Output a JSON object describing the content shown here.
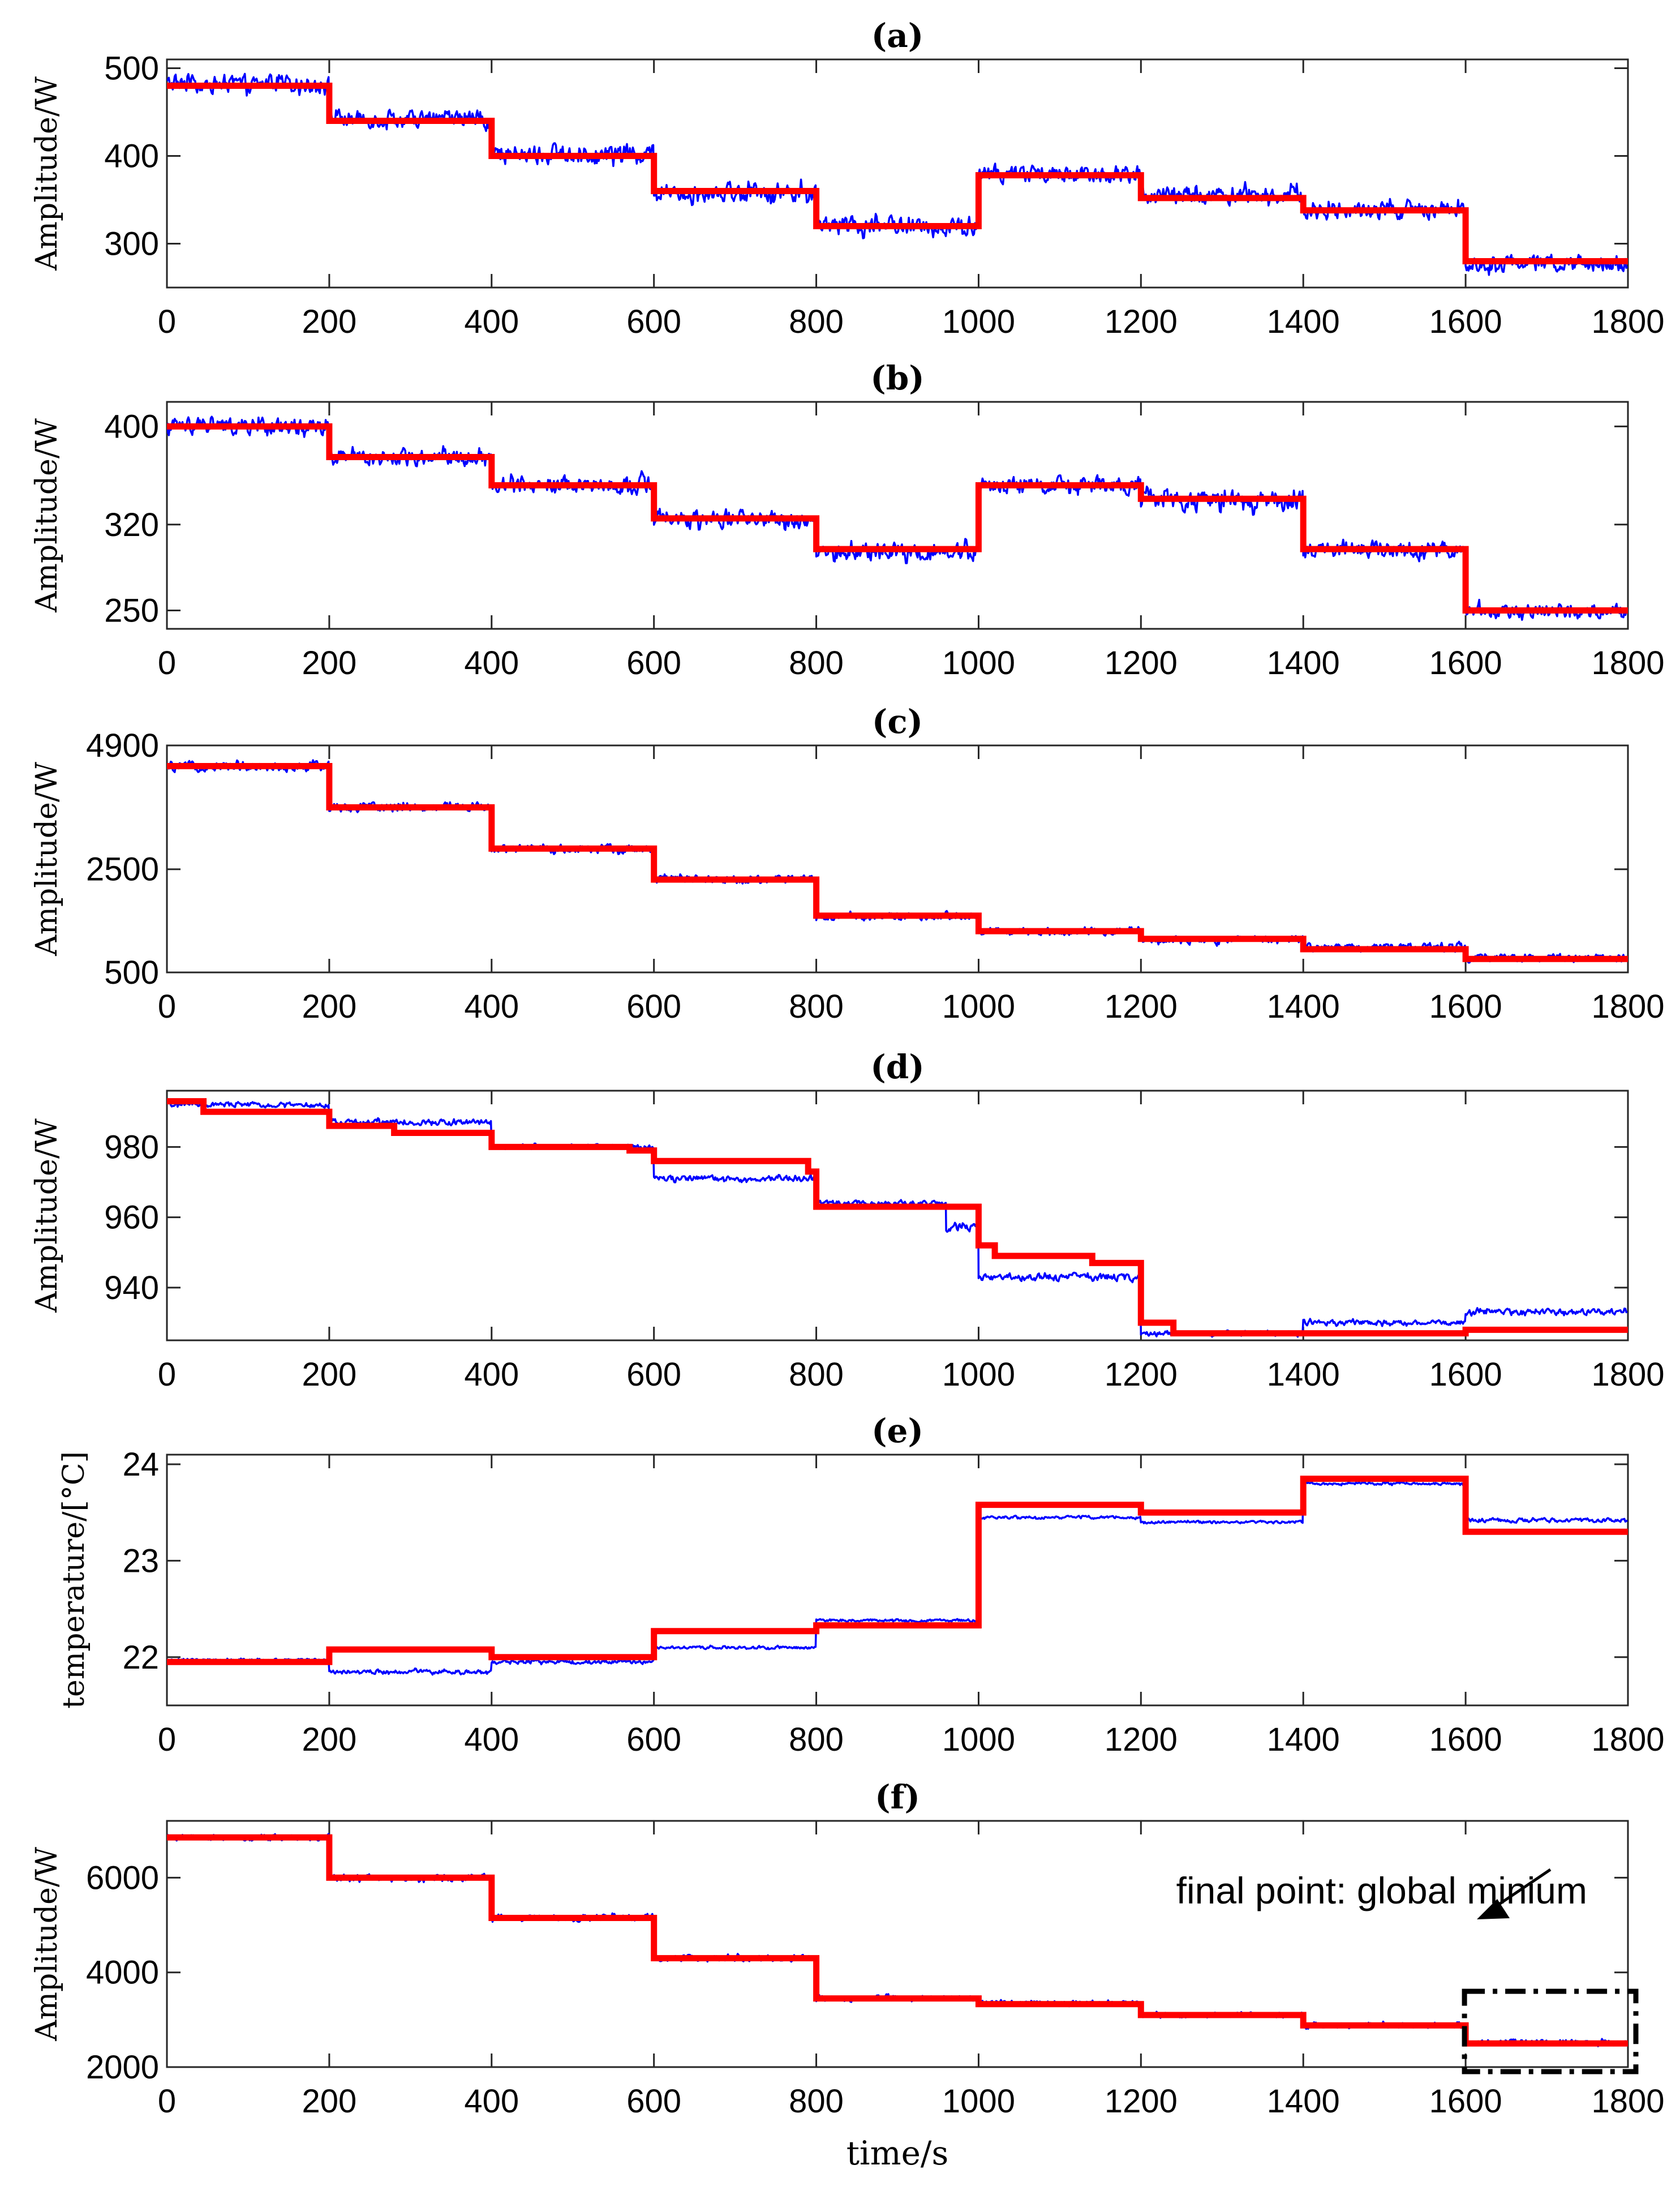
{
  "chart_data": [
    {
      "type": "line",
      "title": "(a)",
      "xlabel": "",
      "ylabel": "Amplitude/W",
      "xlim": [
        0,
        1800
      ],
      "ylim": [
        250,
        510
      ],
      "xticks": [
        0,
        200,
        400,
        600,
        800,
        1000,
        1200,
        1400,
        1600,
        1800
      ],
      "yticks": [
        300,
        400,
        500
      ],
      "series": [
        {
          "name": "measured",
          "color": "#0000ff",
          "steps": [
            {
              "x0": 0,
              "x1": 200,
              "level": 482,
              "noise": 14
            },
            {
              "x0": 200,
              "x1": 400,
              "level": 442,
              "noise": 14
            },
            {
              "x0": 400,
              "x1": 600,
              "level": 402,
              "noise": 16
            },
            {
              "x0": 600,
              "x1": 800,
              "level": 360,
              "noise": 16
            },
            {
              "x0": 800,
              "x1": 1000,
              "level": 320,
              "noise": 15
            },
            {
              "x0": 1000,
              "x1": 1200,
              "level": 380,
              "noise": 15
            },
            {
              "x0": 1200,
              "x1": 1400,
              "level": 355,
              "noise": 14
            },
            {
              "x0": 1400,
              "x1": 1600,
              "level": 338,
              "noise": 15
            },
            {
              "x0": 1600,
              "x1": 1800,
              "level": 277,
              "noise": 13
            }
          ]
        },
        {
          "name": "estimated",
          "color": "#ff0000",
          "points": [
            [
              0,
              480
            ],
            [
              200,
              480
            ],
            [
              200,
              440
            ],
            [
              400,
              440
            ],
            [
              400,
              400
            ],
            [
              600,
              400
            ],
            [
              600,
              360
            ],
            [
              800,
              360
            ],
            [
              800,
              320
            ],
            [
              1000,
              320
            ],
            [
              1000,
              378
            ],
            [
              1200,
              378
            ],
            [
              1200,
              352
            ],
            [
              1400,
              352
            ],
            [
              1400,
              338
            ],
            [
              1600,
              338
            ],
            [
              1600,
              280
            ],
            [
              1800,
              280
            ]
          ]
        }
      ]
    },
    {
      "type": "line",
      "title": "(b)",
      "xlabel": "",
      "ylabel": "Amplitude/W",
      "xlim": [
        0,
        1800
      ],
      "ylim": [
        235,
        420
      ],
      "xticks": [
        0,
        200,
        400,
        600,
        800,
        1000,
        1200,
        1400,
        1600,
        1800
      ],
      "yticks": [
        250,
        320,
        400
      ],
      "series": [
        {
          "name": "measured",
          "color": "#0000ff",
          "steps": [
            {
              "x0": 0,
              "x1": 200,
              "level": 400,
              "noise": 10
            },
            {
              "x0": 200,
              "x1": 400,
              "level": 375,
              "noise": 10
            },
            {
              "x0": 400,
              "x1": 600,
              "level": 352,
              "noise": 10
            },
            {
              "x0": 600,
              "x1": 800,
              "level": 324,
              "noise": 10
            },
            {
              "x0": 800,
              "x1": 1000,
              "level": 298,
              "noise": 10
            },
            {
              "x0": 1000,
              "x1": 1200,
              "level": 352,
              "noise": 10
            },
            {
              "x0": 1200,
              "x1": 1400,
              "level": 340,
              "noise": 12
            },
            {
              "x0": 1400,
              "x1": 1600,
              "level": 300,
              "noise": 10
            },
            {
              "x0": 1600,
              "x1": 1800,
              "level": 250,
              "noise": 8
            }
          ]
        },
        {
          "name": "estimated",
          "color": "#ff0000",
          "points": [
            [
              0,
              400
            ],
            [
              200,
              400
            ],
            [
              200,
              375
            ],
            [
              400,
              375
            ],
            [
              400,
              352
            ],
            [
              600,
              352
            ],
            [
              600,
              325
            ],
            [
              800,
              325
            ],
            [
              800,
              300
            ],
            [
              1000,
              300
            ],
            [
              1000,
              352
            ],
            [
              1200,
              352
            ],
            [
              1200,
              341
            ],
            [
              1400,
              341
            ],
            [
              1400,
              300
            ],
            [
              1600,
              300
            ],
            [
              1600,
              250
            ],
            [
              1800,
              250
            ]
          ]
        }
      ]
    },
    {
      "type": "line",
      "title": "(c)",
      "xlabel": "",
      "ylabel": "Amplitude/W",
      "xlim": [
        0,
        1800
      ],
      "ylim": [
        500,
        4900
      ],
      "xticks": [
        0,
        200,
        400,
        600,
        800,
        1000,
        1200,
        1400,
        1600,
        1800
      ],
      "yticks": [
        500,
        2500,
        4900
      ],
      "series": [
        {
          "name": "measured",
          "color": "#0000ff",
          "steps": [
            {
              "x0": 0,
              "x1": 200,
              "level": 4500,
              "noise": 140
            },
            {
              "x0": 200,
              "x1": 400,
              "level": 3700,
              "noise": 130
            },
            {
              "x0": 400,
              "x1": 600,
              "level": 2900,
              "noise": 120
            },
            {
              "x0": 600,
              "x1": 800,
              "level": 2300,
              "noise": 110
            },
            {
              "x0": 800,
              "x1": 1000,
              "level": 1580,
              "noise": 100
            },
            {
              "x0": 1000,
              "x1": 1200,
              "level": 1300,
              "noise": 100
            },
            {
              "x0": 1200,
              "x1": 1400,
              "level": 1130,
              "noise": 100
            },
            {
              "x0": 1400,
              "x1": 1600,
              "level": 990,
              "noise": 100
            },
            {
              "x0": 1600,
              "x1": 1800,
              "level": 780,
              "noise": 100
            }
          ]
        },
        {
          "name": "estimated",
          "color": "#ff0000",
          "points": [
            [
              0,
              4500
            ],
            [
              200,
              4500
            ],
            [
              200,
              3700
            ],
            [
              400,
              3700
            ],
            [
              400,
              2900
            ],
            [
              600,
              2900
            ],
            [
              600,
              2300
            ],
            [
              800,
              2300
            ],
            [
              800,
              1600
            ],
            [
              1000,
              1600
            ],
            [
              1000,
              1300
            ],
            [
              1200,
              1300
            ],
            [
              1200,
              1150
            ],
            [
              1400,
              1150
            ],
            [
              1400,
              950
            ],
            [
              1600,
              950
            ],
            [
              1600,
              760
            ],
            [
              1800,
              760
            ]
          ]
        }
      ]
    },
    {
      "type": "line",
      "title": "(d)",
      "xlabel": "",
      "ylabel": "Amplitude/W",
      "xlim": [
        0,
        1800
      ],
      "ylim": [
        925,
        996
      ],
      "xticks": [
        0,
        200,
        400,
        600,
        800,
        1000,
        1200,
        1400,
        1600,
        1800
      ],
      "yticks": [
        940,
        960,
        980
      ],
      "series": [
        {
          "name": "measured",
          "color": "#0000ff",
          "steps": [
            {
              "x0": 0,
              "x1": 200,
              "level": 992,
              "noise": 1
            },
            {
              "x0": 200,
              "x1": 400,
              "level": 987,
              "noise": 1.2
            },
            {
              "x0": 400,
              "x1": 600,
              "level": 980,
              "noise": 1
            },
            {
              "x0": 600,
              "x1": 800,
              "level": 971,
              "noise": 1.2
            },
            {
              "x0": 800,
              "x1": 960,
              "level": 964,
              "noise": 1
            },
            {
              "x0": 960,
              "x1": 1000,
              "level": 957,
              "noise": 1.5
            },
            {
              "x0": 1000,
              "x1": 1200,
              "level": 943,
              "noise": 1.5
            },
            {
              "x0": 1200,
              "x1": 1400,
              "level": 927,
              "noise": 1
            },
            {
              "x0": 1400,
              "x1": 1600,
              "level": 930,
              "noise": 1
            },
            {
              "x0": 1600,
              "x1": 1800,
              "level": 933,
              "noise": 1.2
            }
          ]
        },
        {
          "name": "estimated",
          "color": "#ff0000",
          "points": [
            [
              0,
              993
            ],
            [
              45,
              993
            ],
            [
              45,
              990
            ],
            [
              200,
              990
            ],
            [
              200,
              986
            ],
            [
              280,
              986
            ],
            [
              280,
              984
            ],
            [
              400,
              984
            ],
            [
              400,
              980
            ],
            [
              570,
              980
            ],
            [
              570,
              979
            ],
            [
              600,
              979
            ],
            [
              600,
              976
            ],
            [
              790,
              976
            ],
            [
              790,
              973
            ],
            [
              800,
              973
            ],
            [
              800,
              963
            ],
            [
              1000,
              963
            ],
            [
              1000,
              952
            ],
            [
              1020,
              952
            ],
            [
              1020,
              949
            ],
            [
              1140,
              949
            ],
            [
              1140,
              947
            ],
            [
              1200,
              947
            ],
            [
              1200,
              930
            ],
            [
              1240,
              930
            ],
            [
              1240,
              927
            ],
            [
              1600,
              927
            ],
            [
              1600,
              928
            ],
            [
              1800,
              928
            ]
          ]
        }
      ]
    },
    {
      "type": "line",
      "title": "(e)",
      "xlabel": "",
      "ylabel": "temperature/[°C]",
      "xlim": [
        0,
        1800
      ],
      "ylim": [
        21.5,
        24.1
      ],
      "xticks": [
        0,
        200,
        400,
        600,
        800,
        1000,
        1200,
        1400,
        1600,
        1800
      ],
      "yticks": [
        22,
        23,
        24
      ],
      "series": [
        {
          "name": "measured",
          "color": "#0000ff",
          "steps": [
            {
              "x0": 0,
              "x1": 200,
              "level": 21.97,
              "noise": 0.02
            },
            {
              "x0": 200,
              "x1": 400,
              "level": 21.85,
              "noise": 0.03
            },
            {
              "x0": 400,
              "x1": 600,
              "level": 21.95,
              "noise": 0.03
            },
            {
              "x0": 600,
              "x1": 800,
              "level": 22.1,
              "noise": 0.02
            },
            {
              "x0": 800,
              "x1": 1000,
              "level": 22.38,
              "noise": 0.02
            },
            {
              "x0": 1000,
              "x1": 1200,
              "level": 23.45,
              "noise": 0.02
            },
            {
              "x0": 1200,
              "x1": 1400,
              "level": 23.4,
              "noise": 0.02
            },
            {
              "x0": 1400,
              "x1": 1600,
              "level": 23.8,
              "noise": 0.02
            },
            {
              "x0": 1600,
              "x1": 1800,
              "level": 23.42,
              "noise": 0.03
            }
          ]
        },
        {
          "name": "estimated",
          "color": "#ff0000",
          "points": [
            [
              0,
              21.95
            ],
            [
              200,
              21.95
            ],
            [
              200,
              22.08
            ],
            [
              400,
              22.08
            ],
            [
              400,
              22.0
            ],
            [
              600,
              22.0
            ],
            [
              600,
              22.27
            ],
            [
              800,
              22.27
            ],
            [
              800,
              22.33
            ],
            [
              1000,
              22.33
            ],
            [
              1000,
              23.58
            ],
            [
              1200,
              23.58
            ],
            [
              1200,
              23.5
            ],
            [
              1400,
              23.5
            ],
            [
              1400,
              23.85
            ],
            [
              1600,
              23.85
            ],
            [
              1600,
              23.3
            ],
            [
              1800,
              23.3
            ]
          ]
        }
      ]
    },
    {
      "type": "line",
      "title": "(f)",
      "xlabel": "time/s",
      "ylabel": "Amplitude/W",
      "xlim": [
        0,
        1800
      ],
      "ylim": [
        2000,
        7200
      ],
      "xticks": [
        0,
        200,
        400,
        600,
        800,
        1000,
        1200,
        1400,
        1600,
        1800
      ],
      "yticks": [
        2000,
        4000,
        6000
      ],
      "annotation": {
        "text": "final point: global minium",
        "box_x": [
          1600,
          1800
        ],
        "box_y": [
          2000,
          3600
        ]
      },
      "series": [
        {
          "name": "measured",
          "color": "#0000ff",
          "steps": [
            {
              "x0": 0,
              "x1": 200,
              "level": 6850,
              "noise": 90
            },
            {
              "x0": 200,
              "x1": 400,
              "level": 6000,
              "noise": 100
            },
            {
              "x0": 400,
              "x1": 600,
              "level": 5150,
              "noise": 100
            },
            {
              "x0": 600,
              "x1": 800,
              "level": 4300,
              "noise": 90
            },
            {
              "x0": 800,
              "x1": 1000,
              "level": 3450,
              "noise": 80
            },
            {
              "x0": 1000,
              "x1": 1200,
              "level": 3350,
              "noise": 80
            },
            {
              "x0": 1200,
              "x1": 1400,
              "level": 3100,
              "noise": 80
            },
            {
              "x0": 1400,
              "x1": 1600,
              "level": 2880,
              "noise": 80
            },
            {
              "x0": 1600,
              "x1": 1800,
              "level": 2520,
              "noise": 80
            }
          ]
        },
        {
          "name": "estimated",
          "color": "#ff0000",
          "points": [
            [
              0,
              6850
            ],
            [
              200,
              6850
            ],
            [
              200,
              6000
            ],
            [
              400,
              6000
            ],
            [
              400,
              5150
            ],
            [
              600,
              5150
            ],
            [
              600,
              4300
            ],
            [
              800,
              4300
            ],
            [
              800,
              3450
            ],
            [
              1000,
              3450
            ],
            [
              1000,
              3330
            ],
            [
              1200,
              3330
            ],
            [
              1200,
              3100
            ],
            [
              1400,
              3100
            ],
            [
              1400,
              2880
            ],
            [
              1600,
              2880
            ],
            [
              1600,
              2500
            ],
            [
              1800,
              2500
            ]
          ]
        }
      ]
    }
  ]
}
